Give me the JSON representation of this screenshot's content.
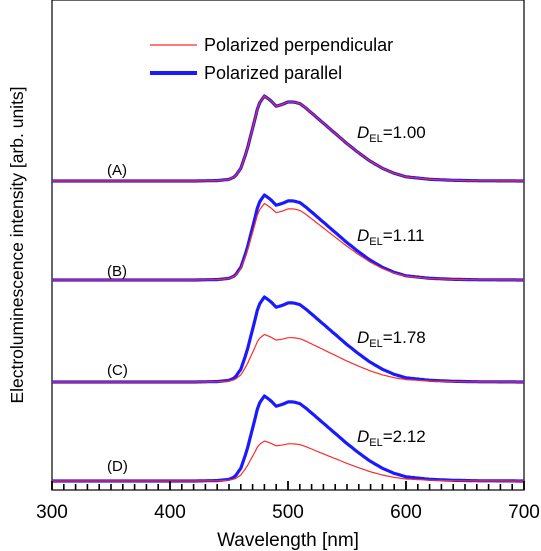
{
  "chart_data": {
    "type": "line",
    "xlabel": "Wavelength [nm]",
    "ylabel": "Electroluminescence intensity [arb. units]",
    "xlim": [
      300,
      700
    ],
    "xticks": [
      300,
      400,
      500,
      600,
      700
    ],
    "xtick_labels": [
      "300",
      "400",
      "500",
      "600",
      "700"
    ],
    "grid": false,
    "legend": {
      "placement": "top-center",
      "entries": [
        {
          "name": "Polarized perpendicular",
          "color": "#ff2a2a"
        },
        {
          "name": "Polarized parallel",
          "color": "#1a1aff"
        }
      ]
    },
    "colors": {
      "perpendicular": "#ff2a2a",
      "parallel": "#1a1aff"
    },
    "panels": [
      {
        "label": "(A)",
        "annotation_symbol": "D",
        "annotation_subscript": "EL",
        "annotation_value": "=1.00",
        "parallel_scale": 1.0,
        "perpendicular_scale": 1.0
      },
      {
        "label": "(B)",
        "annotation_symbol": "D",
        "annotation_subscript": "EL",
        "annotation_value": "=1.11",
        "parallel_scale": 1.0,
        "perpendicular_scale": 0.9
      },
      {
        "label": "(C)",
        "annotation_symbol": "D",
        "annotation_subscript": "EL",
        "annotation_value": "=1.78",
        "parallel_scale": 1.0,
        "perpendicular_scale": 0.56
      },
      {
        "label": "(D)",
        "annotation_symbol": "D",
        "annotation_subscript": "EL",
        "annotation_value": "=2.12",
        "parallel_scale": 1.0,
        "perpendicular_scale": 0.47
      }
    ],
    "spectrum_shape": {
      "x": [
        300,
        420,
        440,
        450,
        455,
        460,
        465,
        470,
        475,
        480,
        485,
        490,
        495,
        500,
        505,
        510,
        515,
        520,
        530,
        540,
        550,
        560,
        570,
        580,
        590,
        600,
        620,
        640,
        660,
        700
      ],
      "y": [
        0,
        0,
        0.005,
        0.02,
        0.05,
        0.15,
        0.35,
        0.62,
        0.9,
        1.0,
        0.95,
        0.88,
        0.9,
        0.93,
        0.93,
        0.91,
        0.86,
        0.8,
        0.68,
        0.56,
        0.44,
        0.33,
        0.23,
        0.15,
        0.09,
        0.05,
        0.02,
        0.008,
        0.003,
        0
      ]
    }
  }
}
